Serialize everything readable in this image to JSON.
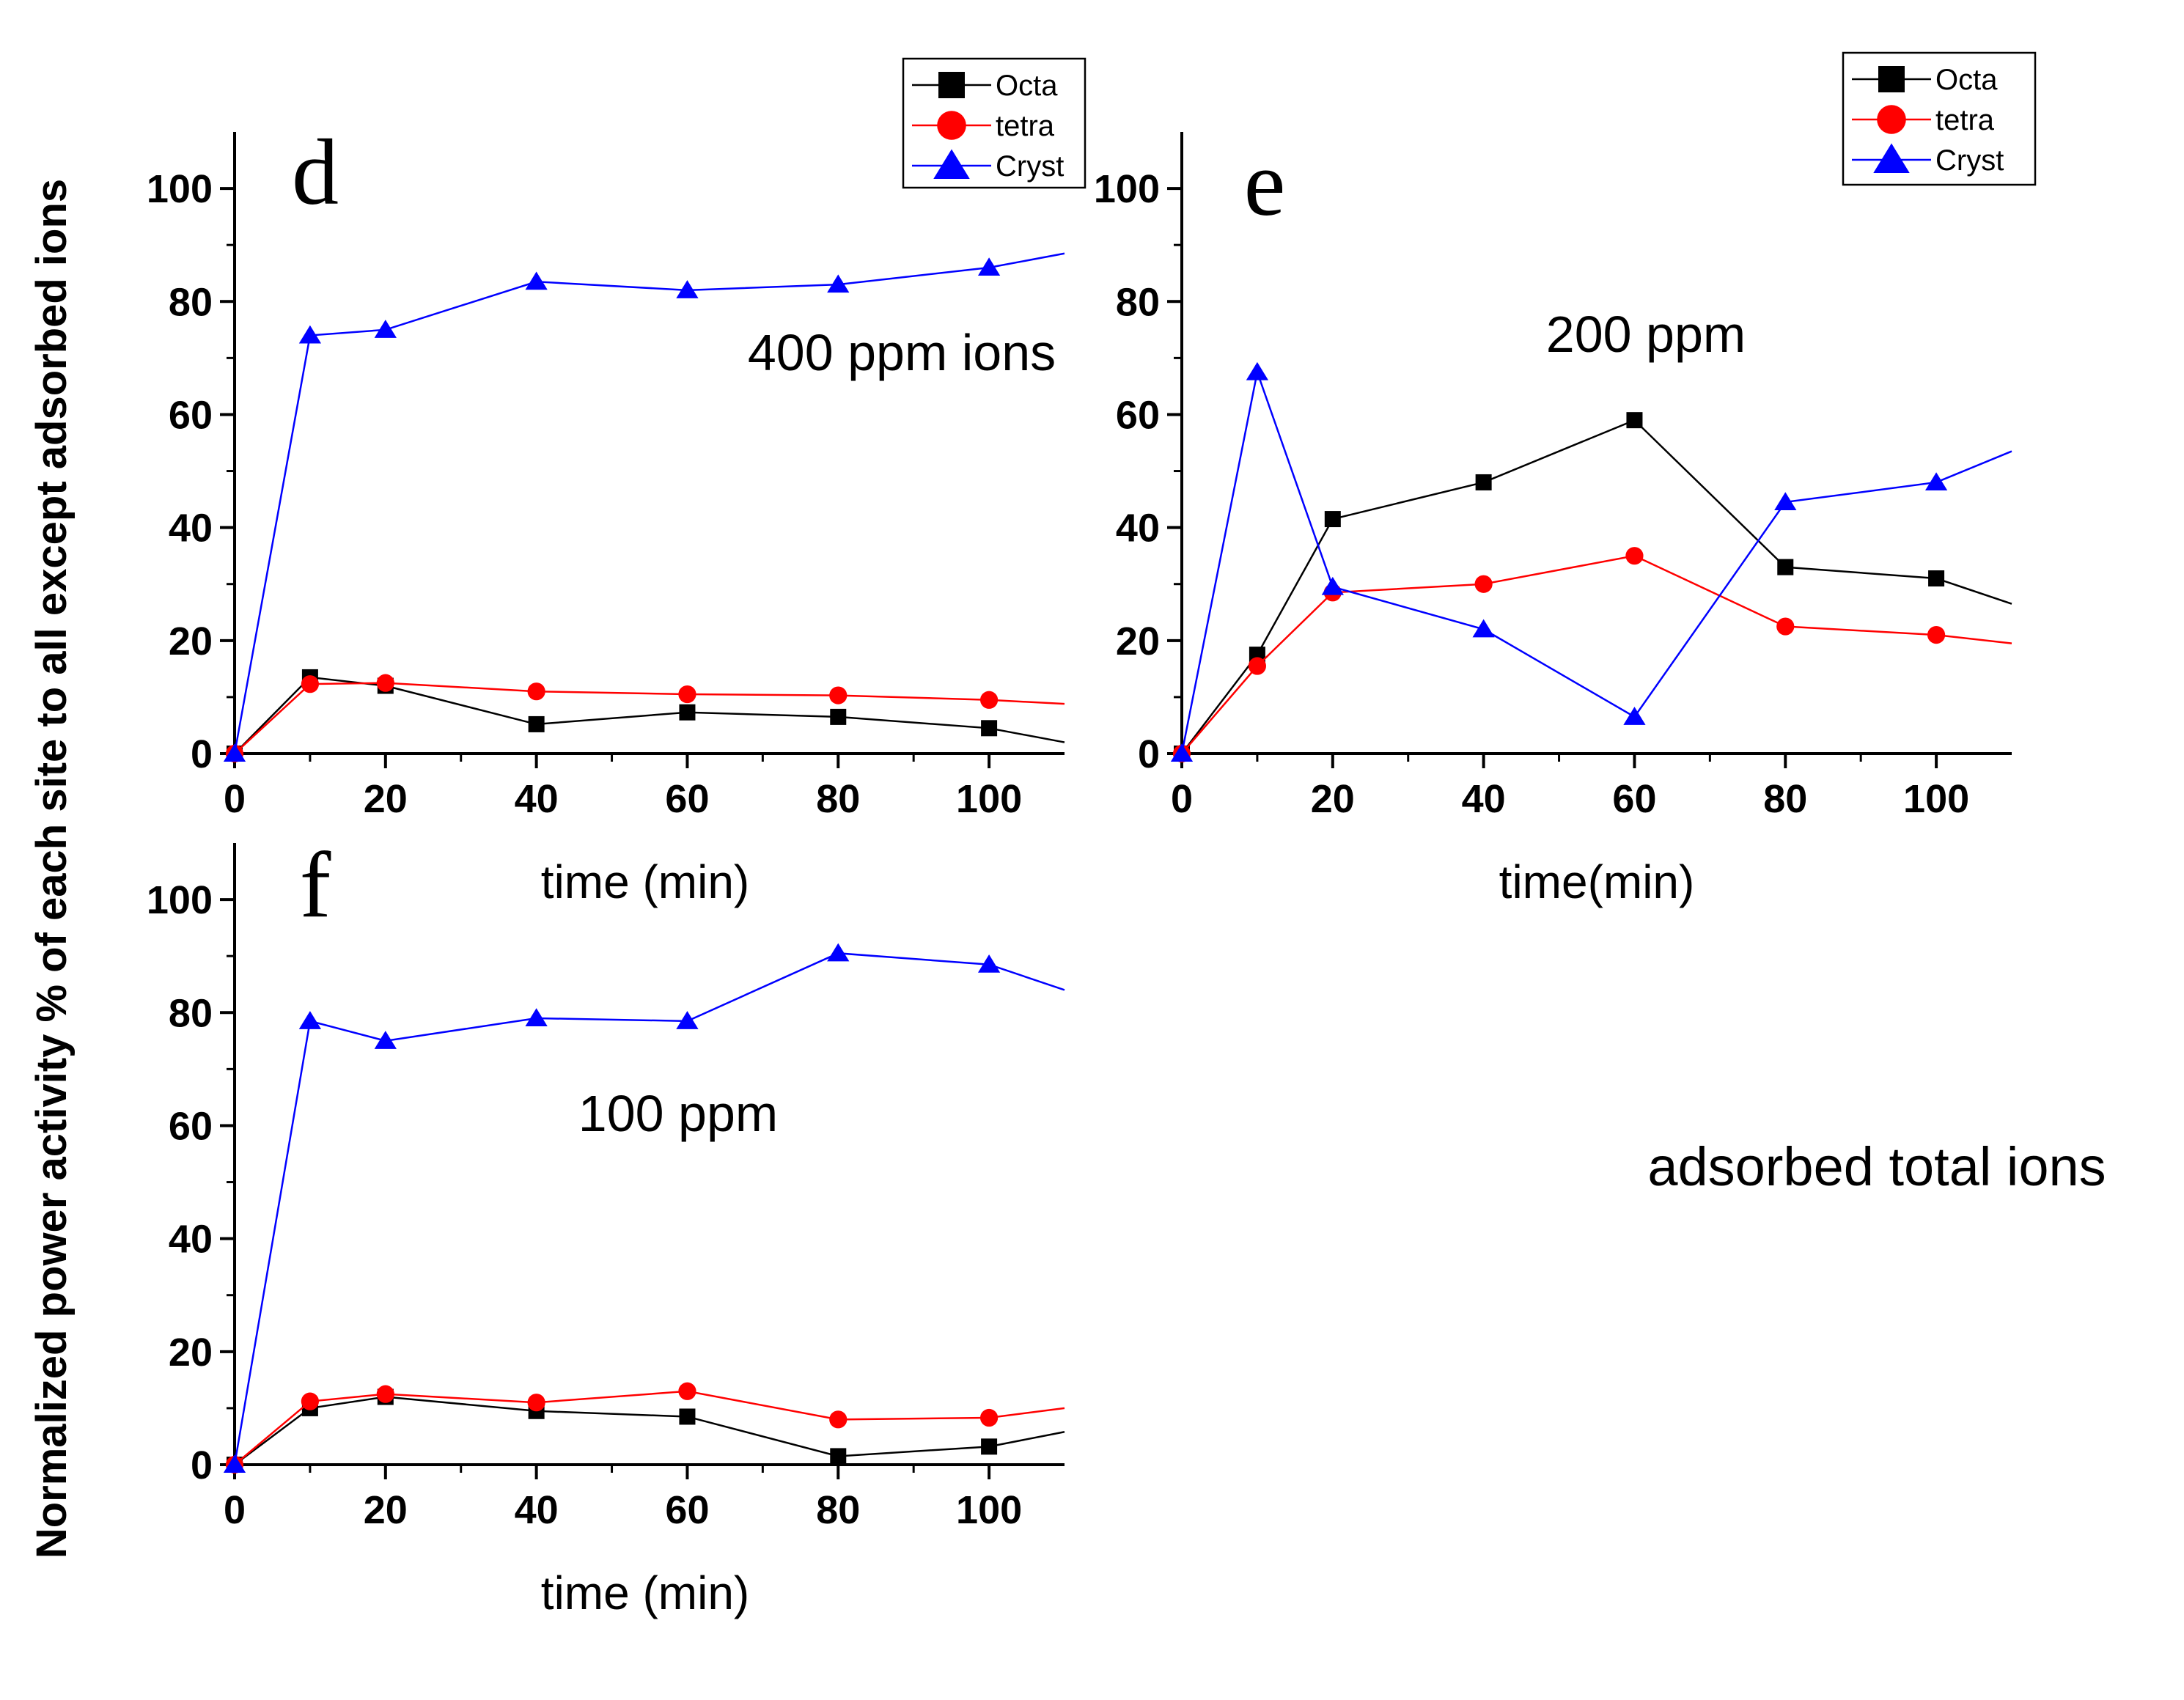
{
  "figure": {
    "ylabel": "Normalized power activity  % of  each site to all except adsorbed ions",
    "note": "adsorbed total ions"
  },
  "colors": {
    "octa": "#000000",
    "tetra": "#ff0000",
    "cryst": "#0000ff"
  },
  "chart_data": [
    {
      "id": "d",
      "type": "line",
      "panel_label": "d",
      "annotation": "400 ppm ions",
      "title": "",
      "xlabel": "time (min)",
      "ylabel": "",
      "xlim": [
        0,
        110
      ],
      "ylim": [
        0,
        110
      ],
      "xticks": [
        0,
        20,
        40,
        60,
        80,
        100
      ],
      "yticks": [
        0,
        20,
        40,
        60,
        80,
        100
      ],
      "legend": {
        "position": "top-right",
        "entries": [
          "Octa",
          "tetra",
          "Cryst"
        ]
      },
      "series": [
        {
          "name": "Octa",
          "marker": "square",
          "color": "#000000",
          "x": [
            0,
            10,
            20,
            40,
            60,
            80,
            100,
            110
          ],
          "y": [
            0,
            13.5,
            12,
            5.2,
            7.3,
            6.5,
            4.5,
            2
          ]
        },
        {
          "name": "tetra",
          "marker": "circle",
          "color": "#ff0000",
          "x": [
            0,
            10,
            20,
            40,
            60,
            80,
            100,
            110
          ],
          "y": [
            0,
            12.3,
            12.5,
            11,
            10.5,
            10.3,
            9.5,
            8.8
          ]
        },
        {
          "name": "Cryst",
          "marker": "triangle",
          "color": "#0000ff",
          "x": [
            0,
            10,
            20,
            40,
            60,
            80,
            100,
            110
          ],
          "y": [
            0,
            74,
            75,
            83.5,
            82,
            83,
            86,
            88.5
          ]
        }
      ]
    },
    {
      "id": "e",
      "type": "line",
      "panel_label": "e",
      "annotation": "200 ppm",
      "title": "",
      "xlabel": "time(min)",
      "ylabel": "",
      "xlim": [
        0,
        110
      ],
      "ylim": [
        0,
        110
      ],
      "xticks": [
        0,
        20,
        40,
        60,
        80,
        100
      ],
      "yticks": [
        0,
        20,
        40,
        60,
        80,
        100
      ],
      "legend": {
        "position": "top-right",
        "entries": [
          "Octa",
          "tetra",
          "Cryst"
        ]
      },
      "series": [
        {
          "name": "Octa",
          "marker": "square",
          "color": "#000000",
          "x": [
            0,
            10,
            20,
            40,
            60,
            80,
            100,
            110
          ],
          "y": [
            0,
            17.5,
            41.5,
            48,
            59,
            33,
            31,
            26.5
          ]
        },
        {
          "name": "tetra",
          "marker": "circle",
          "color": "#ff0000",
          "x": [
            0,
            10,
            20,
            40,
            60,
            80,
            100,
            110
          ],
          "y": [
            0,
            15.5,
            28.5,
            30,
            35,
            22.5,
            21,
            19.5
          ]
        },
        {
          "name": "Cryst",
          "marker": "triangle",
          "color": "#0000ff",
          "x": [
            0,
            10,
            20,
            40,
            60,
            80,
            100,
            110
          ],
          "y": [
            0,
            67.5,
            29.5,
            22,
            6.5,
            44.5,
            48,
            53.5
          ]
        }
      ]
    },
    {
      "id": "f",
      "type": "line",
      "panel_label": "f",
      "annotation": "100 ppm",
      "title": "",
      "xlabel": "time (min)",
      "ylabel": "",
      "xlim": [
        0,
        110
      ],
      "ylim": [
        0,
        110
      ],
      "xticks": [
        0,
        20,
        40,
        60,
        80,
        100
      ],
      "yticks": [
        0,
        20,
        40,
        60,
        80,
        100
      ],
      "legend": null,
      "series": [
        {
          "name": "Octa",
          "marker": "square",
          "color": "#000000",
          "x": [
            0,
            10,
            20,
            40,
            60,
            80,
            100,
            110
          ],
          "y": [
            0,
            10,
            12,
            9.5,
            8.5,
            1.5,
            3.2,
            5.8
          ]
        },
        {
          "name": "tetra",
          "marker": "circle",
          "color": "#ff0000",
          "x": [
            0,
            10,
            20,
            40,
            60,
            80,
            100,
            110
          ],
          "y": [
            0,
            11.2,
            12.5,
            11,
            13,
            8,
            8.3,
            10
          ]
        },
        {
          "name": "Cryst",
          "marker": "triangle",
          "color": "#0000ff",
          "x": [
            0,
            10,
            20,
            40,
            60,
            80,
            100,
            110
          ],
          "y": [
            0,
            78.5,
            75,
            79,
            78.5,
            90.5,
            88.5,
            84
          ]
        }
      ]
    }
  ]
}
